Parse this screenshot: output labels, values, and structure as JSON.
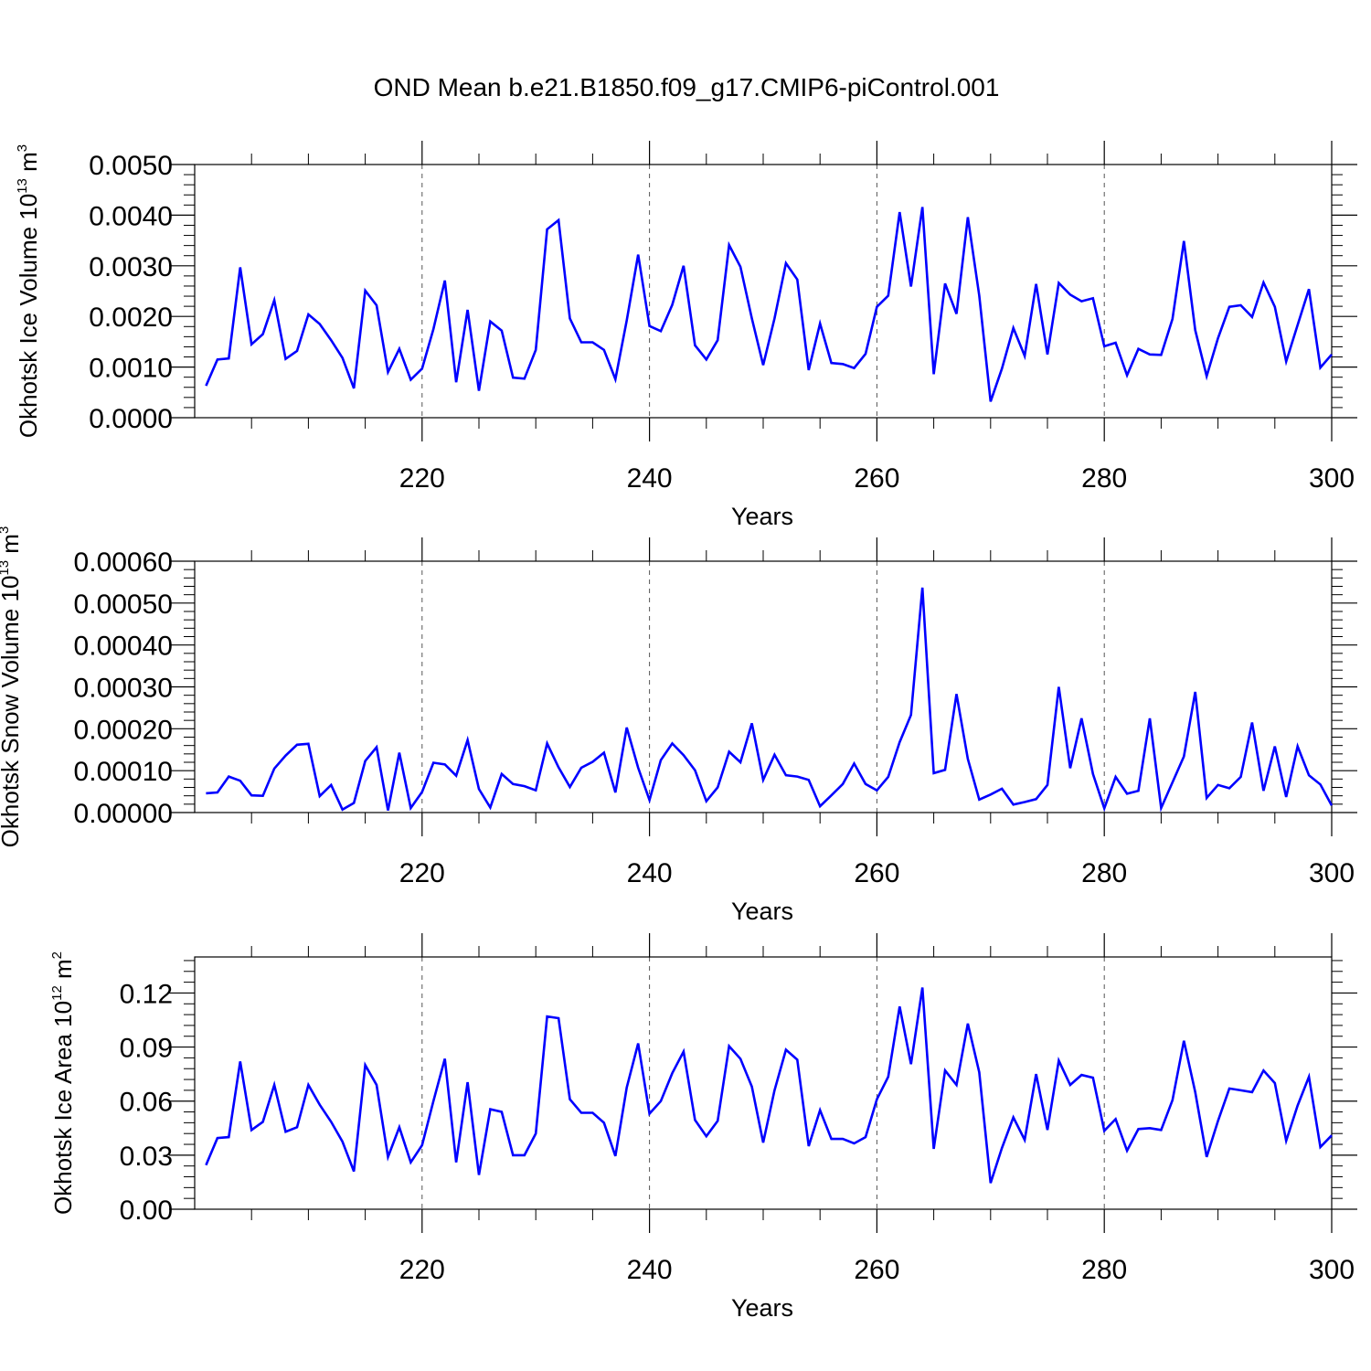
{
  "figure": {
    "title": "OND Mean b.e21.B1850.f09_g17.CMIP6-piControl.001",
    "colors": {
      "line": "#0000ff",
      "axis": "#000000",
      "gridline": "#555555",
      "background": "#ffffff"
    }
  },
  "chart_data": [
    {
      "type": "line",
      "name": "ice-volume",
      "ylabel": {
        "text": "Okhotsk Ice Volume 10",
        "exponent": "13",
        "unit": " m",
        "unit_exponent": "3"
      },
      "xlabel": "Years",
      "xlim": [
        200,
        300
      ],
      "ylim": [
        0,
        0.005
      ],
      "yticks": [
        {
          "value": 0,
          "label": "0.0000"
        },
        {
          "value": 0.001,
          "label": "0.0010"
        },
        {
          "value": 0.002,
          "label": "0.0020"
        },
        {
          "value": 0.003,
          "label": "0.0030"
        },
        {
          "value": 0.004,
          "label": "0.0040"
        },
        {
          "value": 0.005,
          "label": "0.0050"
        }
      ],
      "xticks": [
        {
          "value": 220,
          "label": "220"
        },
        {
          "value": 240,
          "label": "240"
        },
        {
          "value": 260,
          "label": "260"
        },
        {
          "value": 280,
          "label": "280"
        },
        {
          "value": 300,
          "label": "300"
        }
      ],
      "x_start": 201,
      "values": [
        0.00063,
        0.00115,
        0.00117,
        0.00297,
        0.00145,
        0.00165,
        0.00232,
        0.00116,
        0.00132,
        0.00204,
        0.00185,
        0.00153,
        0.00118,
        0.00058,
        0.00251,
        0.00222,
        0.0009,
        0.00136,
        0.00075,
        0.00097,
        0.00175,
        0.00271,
        0.0007,
        0.00213,
        0.00053,
        0.0019,
        0.00172,
        0.00079,
        0.00077,
        0.00134,
        0.00372,
        0.0039,
        0.00196,
        0.00149,
        0.00149,
        0.00134,
        0.00076,
        0.00192,
        0.00322,
        0.00181,
        0.00171,
        0.00223,
        0.003,
        0.00143,
        0.00115,
        0.00153,
        0.00341,
        0.00298,
        0.00196,
        0.00104,
        0.00196,
        0.00305,
        0.00273,
        0.00094,
        0.00186,
        0.00108,
        0.00106,
        0.00098,
        0.00126,
        0.00219,
        0.00241,
        0.00406,
        0.00259,
        0.00416,
        0.00086,
        0.00265,
        0.00205,
        0.00396,
        0.00241,
        0.00032,
        0.00097,
        0.00177,
        0.00122,
        0.00264,
        0.00125,
        0.00266,
        0.00243,
        0.0023,
        0.00236,
        0.00141,
        0.00148,
        0.00084,
        0.00136,
        0.00125,
        0.00124,
        0.00195,
        0.00349,
        0.00173,
        0.00082,
        0.00157,
        0.00219,
        0.00222,
        0.00199,
        0.00267,
        0.00219,
        0.00111,
        0.00183,
        0.00254,
        0.00099,
        0.00125
      ]
    },
    {
      "type": "line",
      "name": "snow-volume",
      "ylabel": {
        "text": "Okhotsk Snow Volume 10",
        "exponent": "13",
        "unit": " m",
        "unit_exponent": "3"
      },
      "xlabel": "Years",
      "xlim": [
        200,
        300
      ],
      "ylim": [
        0,
        0.0006
      ],
      "yticks": [
        {
          "value": 0,
          "label": "0.00000"
        },
        {
          "value": 0.0001,
          "label": "0.00010"
        },
        {
          "value": 0.0002,
          "label": "0.00020"
        },
        {
          "value": 0.0003,
          "label": "0.00030"
        },
        {
          "value": 0.0004,
          "label": "0.00040"
        },
        {
          "value": 0.0005,
          "label": "0.00050"
        },
        {
          "value": 0.0006,
          "label": "0.00060"
        }
      ],
      "xticks": [
        {
          "value": 220,
          "label": "220"
        },
        {
          "value": 240,
          "label": "240"
        },
        {
          "value": 260,
          "label": "260"
        },
        {
          "value": 280,
          "label": "280"
        },
        {
          "value": 300,
          "label": "300"
        }
      ],
      "x_start": 201,
      "values": [
        4.6e-05,
        4.8e-05,
        8.6e-05,
        7.6e-05,
        4.1e-05,
        4e-05,
        0.000105,
        0.000136,
        0.000162,
        0.000164,
        3.9e-05,
        6.6e-05,
        7e-06,
        2.3e-05,
        0.000123,
        0.000156,
        5e-06,
        0.000143,
        1.1e-05,
        4.9e-05,
        0.000119,
        0.000115,
        8.8e-05,
        0.000173,
        5.6e-05,
        1.2e-05,
        9.2e-05,
        6.8e-05,
        6.3e-05,
        5.3e-05,
        0.000165,
        0.000108,
        6.1e-05,
        0.000107,
        0.000121,
        0.000143,
        4.8e-05,
        0.000203,
        0.000107,
        3e-05,
        0.000125,
        0.000165,
        0.000137,
        0.000101,
        2.7e-05,
        6e-05,
        0.000145,
        0.00012,
        0.000213,
        7.8e-05,
        0.000138,
        8.9e-05,
        8.6e-05,
        7.8e-05,
        1.5e-05,
        4.1e-05,
        6.8e-05,
        0.000117,
        6.8e-05,
        5.3e-05,
        8.5e-05,
        0.000168,
        0.000233,
        0.000537,
        9.4e-05,
        0.000102,
        0.000283,
        0.000128,
        3.1e-05,
        4.3e-05,
        5.7e-05,
        1.9e-05,
        2.5e-05,
        3.2e-05,
        6.6e-05,
        0.0003,
        0.000106,
        0.000225,
        9.2e-05,
        1e-05,
        8.5e-05,
        4.5e-05,
        5.2e-05,
        0.000225,
        1.1e-05,
        7.2e-05,
        0.000134,
        0.000288,
        3.5e-05,
        6.6e-05,
        5.8e-05,
        8.5e-05,
        0.000215,
        5.2e-05,
        0.000158,
        3.7e-05,
        0.000158,
        8.9e-05,
        6.7e-05,
        1.7e-05
      ]
    },
    {
      "type": "line",
      "name": "ice-area",
      "ylabel": {
        "text": "Okhotsk Ice Area 10",
        "exponent": "12",
        "unit": " m",
        "unit_exponent": "2"
      },
      "xlabel": "Years",
      "xlim": [
        200,
        300
      ],
      "ylim": [
        0,
        0.14
      ],
      "yticks": [
        {
          "value": 0,
          "label": "0.00"
        },
        {
          "value": 0.03,
          "label": "0.03"
        },
        {
          "value": 0.06,
          "label": "0.06"
        },
        {
          "value": 0.09,
          "label": "0.09"
        },
        {
          "value": 0.12,
          "label": "0.12"
        }
      ],
      "xticks": [
        {
          "value": 220,
          "label": "220"
        },
        {
          "value": 240,
          "label": "240"
        },
        {
          "value": 260,
          "label": "260"
        },
        {
          "value": 280,
          "label": "280"
        },
        {
          "value": 300,
          "label": "300"
        }
      ],
      "x_start": 201,
      "values": [
        0.0245,
        0.0395,
        0.04,
        0.082,
        0.044,
        0.0485,
        0.069,
        0.043,
        0.0455,
        0.069,
        0.058,
        0.0485,
        0.0375,
        0.021,
        0.08,
        0.069,
        0.029,
        0.0455,
        0.026,
        0.0355,
        0.06,
        0.0835,
        0.026,
        0.0705,
        0.019,
        0.0555,
        0.054,
        0.03,
        0.03,
        0.042,
        0.107,
        0.106,
        0.061,
        0.0535,
        0.0535,
        0.048,
        0.0295,
        0.0675,
        0.092,
        0.053,
        0.06,
        0.0755,
        0.0875,
        0.0495,
        0.0405,
        0.049,
        0.0905,
        0.0835,
        0.068,
        0.037,
        0.066,
        0.0885,
        0.083,
        0.035,
        0.055,
        0.039,
        0.039,
        0.0365,
        0.04,
        0.061,
        0.0735,
        0.1125,
        0.0805,
        0.123,
        0.0335,
        0.077,
        0.069,
        0.103,
        0.076,
        0.0145,
        0.034,
        0.051,
        0.0385,
        0.075,
        0.044,
        0.0825,
        0.069,
        0.0745,
        0.073,
        0.0435,
        0.05,
        0.0325,
        0.0445,
        0.045,
        0.044,
        0.0605,
        0.0935,
        0.065,
        0.029,
        0.049,
        0.067,
        0.066,
        0.065,
        0.077,
        0.07,
        0.038,
        0.0575,
        0.0735,
        0.0345,
        0.041
      ]
    }
  ]
}
